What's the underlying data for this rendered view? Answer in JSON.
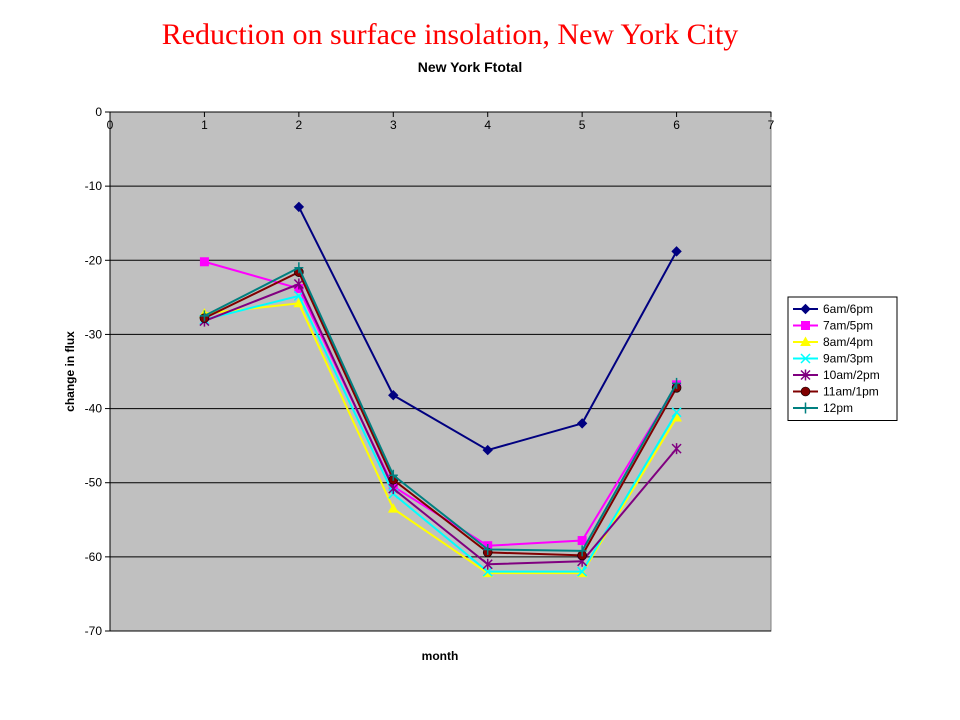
{
  "slide": {
    "title": "Reduction on surface insolation, New York City"
  },
  "chart_data": {
    "type": "line",
    "title": "New York Ftotal",
    "xlabel": "month",
    "ylabel": "change in flux",
    "xlim": [
      0,
      7
    ],
    "ylim": [
      -70,
      0
    ],
    "x_ticks": [
      "0",
      "1",
      "2",
      "3",
      "4",
      "5",
      "6",
      "7"
    ],
    "y_ticks": [
      "0",
      "-10",
      "-20",
      "-30",
      "-40",
      "-50",
      "-60",
      "-70"
    ],
    "grid": "horizontal",
    "legend_position": "right",
    "plot_background": "#c0c0c0",
    "series": [
      {
        "name": "6am/6pm",
        "color": "#000080",
        "marker": "diamond",
        "x": [
          2,
          3,
          4,
          5,
          6
        ],
        "values": [
          -12.8,
          -38.2,
          -45.6,
          -42.0,
          -18.8
        ]
      },
      {
        "name": "7am/5pm",
        "color": "#ff00ff",
        "marker": "square",
        "x": [
          1,
          2,
          3,
          4,
          5,
          6
        ],
        "values": [
          -20.2,
          -23.8,
          -50.5,
          -58.5,
          -57.8,
          -36.8
        ]
      },
      {
        "name": "8am/4pm",
        "color": "#ffff00",
        "marker": "triangle",
        "x": [
          1,
          2,
          3,
          4,
          5,
          6
        ],
        "values": [
          -27.2,
          -25.8,
          -53.5,
          -62.2,
          -62.2,
          -41.2
        ]
      },
      {
        "name": "9am/3pm",
        "color": "#00ffff",
        "marker": "x",
        "x": [
          1,
          2,
          3,
          4,
          5,
          6
        ],
        "values": [
          -28.0,
          -24.8,
          -51.5,
          -62.0,
          -62.0,
          -40.5
        ]
      },
      {
        "name": "10am/2pm",
        "color": "#800080",
        "marker": "star",
        "x": [
          1,
          2,
          3,
          4,
          5,
          6
        ],
        "values": [
          -28.2,
          -23.2,
          -50.8,
          -61.0,
          -60.6,
          -45.4
        ]
      },
      {
        "name": "11am/1pm",
        "color": "#800000",
        "marker": "circle",
        "x": [
          1,
          2,
          3,
          4,
          5,
          6
        ],
        "values": [
          -27.8,
          -21.6,
          -49.6,
          -59.4,
          -59.8,
          -37.2
        ]
      },
      {
        "name": "12pm",
        "color": "#008080",
        "marker": "plus",
        "x": [
          1,
          2,
          3,
          4,
          5,
          6
        ],
        "values": [
          -27.5,
          -21.0,
          -49.0,
          -59.0,
          -59.2,
          -36.6
        ]
      }
    ]
  }
}
